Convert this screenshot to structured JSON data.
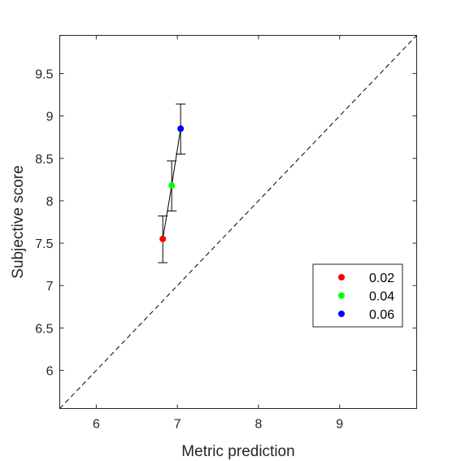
{
  "chart_data": {
    "type": "scatter",
    "title": "",
    "xlabel": "Metric prediction",
    "ylabel": "Subjective score",
    "xlim": [
      5.55,
      9.95
    ],
    "ylim": [
      5.55,
      9.95
    ],
    "xticks": [
      6,
      7,
      8,
      9
    ],
    "xtick_labels": [
      "6",
      "7",
      "8",
      "9"
    ],
    "yticks": [
      6,
      6.5,
      7,
      7.5,
      8,
      8.5,
      9,
      9.5
    ],
    "ytick_labels": [
      "6",
      "6.5",
      "7",
      "7.5",
      "8",
      "8.5",
      "9",
      "9.5"
    ],
    "grid": false,
    "legend_position": "right",
    "reference_line": {
      "style": "dashed",
      "x": [
        5.55,
        9.95
      ],
      "y": [
        5.55,
        9.95
      ]
    },
    "connect_points": true,
    "series": [
      {
        "name": "0.02",
        "color": "#ff0000",
        "x": 6.82,
        "y": 7.55,
        "err_low": 7.27,
        "err_high": 7.82
      },
      {
        "name": "0.04",
        "color": "#00ff00",
        "x": 6.93,
        "y": 8.18,
        "err_low": 7.88,
        "err_high": 8.47
      },
      {
        "name": "0.06",
        "color": "#0000ff",
        "x": 7.04,
        "y": 8.85,
        "err_low": 8.55,
        "err_high": 9.14
      }
    ]
  }
}
